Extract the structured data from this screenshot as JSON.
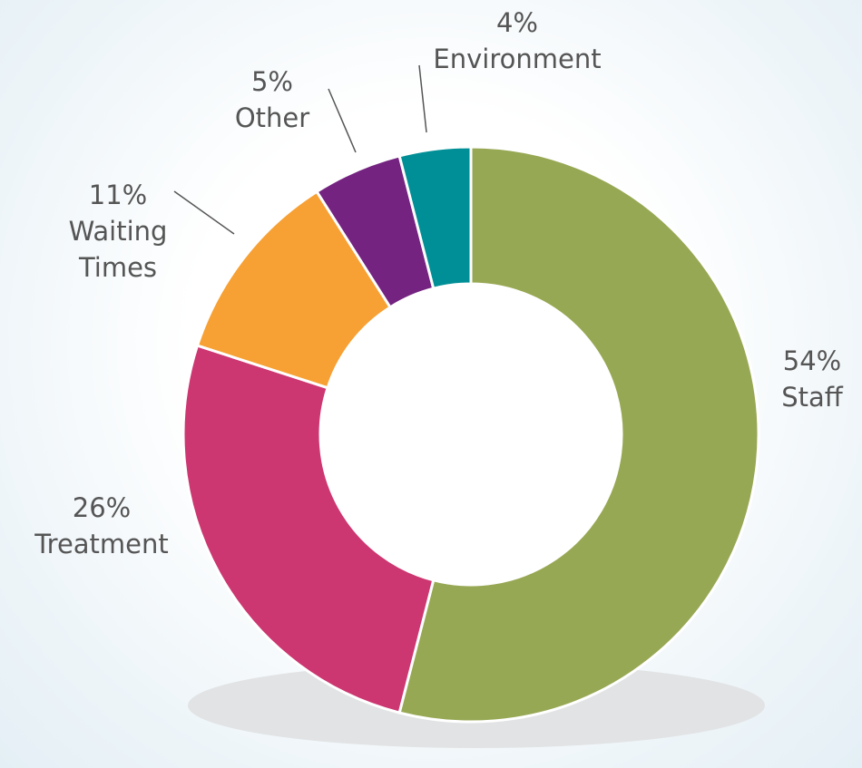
{
  "chart_data": {
    "type": "pie",
    "categories": [
      "Staff",
      "Treatment",
      "Waiting Times",
      "Other",
      "Environment"
    ],
    "values": [
      54,
      26,
      11,
      5,
      4
    ],
    "value_labels": [
      "54%",
      "26%",
      "11%",
      "5%",
      "4%"
    ],
    "colors": [
      "#97a854",
      "#cc3671",
      "#f7a033",
      "#742380",
      "#008f96"
    ],
    "donut": true
  }
}
